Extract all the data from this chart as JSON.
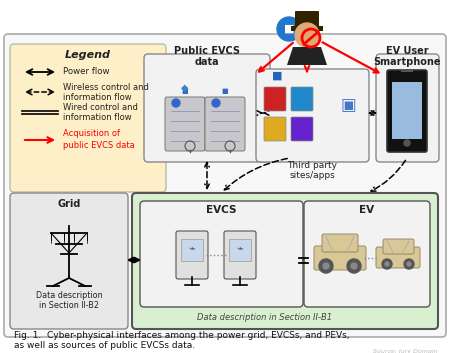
{
  "bg_color": "#ffffff",
  "outer_box_facecolor": "#f8f8f8",
  "outer_box_edge": "#aaaaaa",
  "legend_box_color": "#fdf0c8",
  "legend_box_edge": "#bbbbaa",
  "grid_box_color": "#e8e8e8",
  "grid_box_edge": "#888888",
  "green_box_color": "#d8f0d0",
  "green_box_edge": "#555555",
  "evcs_sub_facecolor": "#f2f2f2",
  "ev_sub_facecolor": "#f2f2f2",
  "pub_box_facecolor": "#f2f2f2",
  "tp_box_facecolor": "#f2f2f2",
  "phone_box_facecolor": "#f2f2f2",
  "title_line1": "Fig. 1.  Cyber-physical interfaces among the power grid, EVCSs, and PEVs,",
  "title_line2": "as well as sources of public EVCSs data.",
  "legend_title": "Legend",
  "watermark": "Source: Jury Domain"
}
